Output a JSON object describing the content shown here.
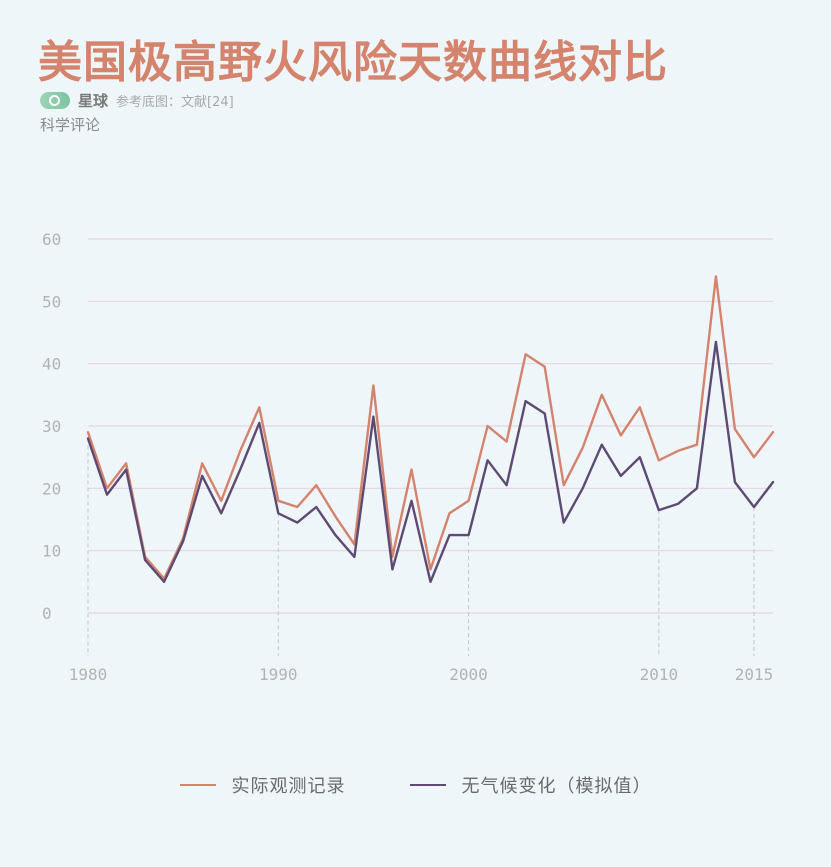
{
  "header": {
    "title": "美国极高野火风险天数曲线对比",
    "brand_name": "星球",
    "source": "参考底图：文献[24]",
    "brand_sub": "科学评论"
  },
  "colors": {
    "observed": "#d4836d",
    "natural": "#5e4a73",
    "grid": "#e6d3e2",
    "axis_text": "#b3b3b3"
  },
  "chart_data": {
    "type": "line",
    "title": "美国极高野火风险天数曲线对比",
    "xlabel": "",
    "ylabel": "",
    "xlim": [
      1980,
      2016
    ],
    "ylim": [
      -6,
      63
    ],
    "yticks": [
      0,
      10,
      20,
      30,
      40,
      50,
      60
    ],
    "xticks": [
      1980,
      1990,
      2000,
      2010,
      2015
    ],
    "grid": true,
    "legend_position": "bottom",
    "x": [
      1980,
      1981,
      1982,
      1983,
      1984,
      1985,
      1986,
      1987,
      1988,
      1989,
      1990,
      1991,
      1992,
      1993,
      1994,
      1995,
      1996,
      1997,
      1998,
      1999,
      2000,
      2001,
      2002,
      2003,
      2004,
      2005,
      2006,
      2007,
      2008,
      2009,
      2010,
      2011,
      2012,
      2013,
      2014,
      2015,
      2016
    ],
    "series": [
      {
        "name": "实际观测记录",
        "color": "#d4836d",
        "values": [
          29,
          20,
          24,
          9,
          5.5,
          12,
          24,
          18,
          26,
          33,
          18,
          17,
          20.5,
          15.5,
          11,
          36.5,
          9,
          23,
          7,
          16,
          18,
          30,
          27.5,
          41.5,
          39.5,
          20.5,
          26.5,
          35,
          28.5,
          33,
          24.5,
          26,
          27,
          54,
          29.5,
          25,
          29
        ]
      },
      {
        "name": "无气候变化（模拟值）",
        "color": "#5e4a73",
        "values": [
          28,
          19,
          23,
          8.5,
          5,
          11.5,
          22,
          16,
          23,
          30.5,
          16,
          14.5,
          17,
          12.5,
          9,
          31.5,
          7,
          18,
          5,
          12.5,
          12.5,
          24.5,
          20.5,
          34,
          32,
          14.5,
          20,
          27,
          22,
          25,
          16.5,
          17.5,
          20,
          43.5,
          21,
          17,
          21
        ]
      }
    ]
  }
}
